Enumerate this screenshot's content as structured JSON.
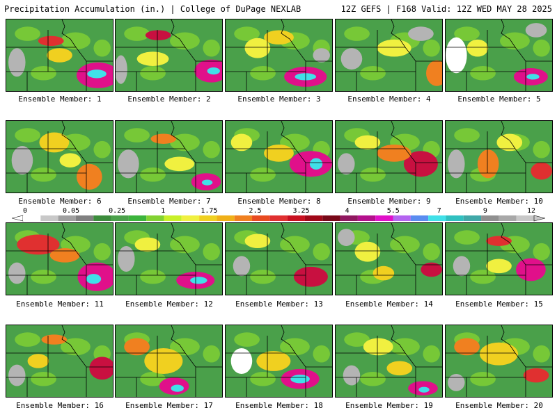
{
  "header": {
    "title": "Precipitation Accumulation (in.) | College of DuPage NEXLAB",
    "run_info": "12Z GEFS | F168 Valid: 12Z WED MAY 28 2025"
  },
  "members": [
    {
      "caption": "Ensemble Member: 1",
      "blobs": [
        [
          0.42,
          0.3,
          0.12,
          0.07,
          "#e03030"
        ],
        [
          0.86,
          0.78,
          0.2,
          0.18,
          "#e0108a"
        ],
        [
          0.85,
          0.76,
          0.09,
          0.06,
          "#40e0e8"
        ],
        [
          0.5,
          0.5,
          0.12,
          0.1,
          "#f0d020"
        ],
        [
          0.1,
          0.6,
          0.08,
          0.2,
          "#b4b4b4"
        ]
      ]
    },
    {
      "caption": "Ensemble Member: 2",
      "blobs": [
        [
          0.4,
          0.22,
          0.12,
          0.07,
          "#c81040"
        ],
        [
          0.9,
          0.72,
          0.16,
          0.16,
          "#e0108a"
        ],
        [
          0.92,
          0.72,
          0.06,
          0.05,
          "#40e0e8"
        ],
        [
          0.35,
          0.55,
          0.15,
          0.1,
          "#f0f040"
        ],
        [
          0.05,
          0.7,
          0.06,
          0.2,
          "#b4b4b4"
        ]
      ]
    },
    {
      "caption": "Ensemble Member: 3",
      "blobs": [
        [
          0.75,
          0.8,
          0.2,
          0.14,
          "#e0108a"
        ],
        [
          0.75,
          0.8,
          0.1,
          0.05,
          "#40e0e8"
        ],
        [
          0.5,
          0.25,
          0.14,
          0.1,
          "#f0d020"
        ],
        [
          0.3,
          0.4,
          0.12,
          0.14,
          "#f0f040"
        ],
        [
          0.9,
          0.5,
          0.08,
          0.1,
          "#b4b4b4"
        ]
      ]
    },
    {
      "caption": "Ensemble Member: 4",
      "blobs": [
        [
          0.95,
          0.75,
          0.1,
          0.18,
          "#f08020"
        ],
        [
          0.55,
          0.4,
          0.16,
          0.12,
          "#f0f040"
        ],
        [
          0.15,
          0.55,
          0.1,
          0.15,
          "#b4b4b4"
        ],
        [
          0.8,
          0.2,
          0.12,
          0.1,
          "#b4b4b4"
        ]
      ]
    },
    {
      "caption": "Ensemble Member: 5",
      "blobs": [
        [
          0.8,
          0.8,
          0.16,
          0.12,
          "#e0108a"
        ],
        [
          0.82,
          0.8,
          0.06,
          0.04,
          "#40e0e8"
        ],
        [
          0.1,
          0.5,
          0.1,
          0.25,
          "#ffffff"
        ],
        [
          0.3,
          0.4,
          0.1,
          0.12,
          "#f0f040"
        ],
        [
          0.85,
          0.15,
          0.1,
          0.1,
          "#b4b4b4"
        ]
      ]
    },
    {
      "caption": "Ensemble Member: 6",
      "blobs": [
        [
          0.78,
          0.78,
          0.12,
          0.18,
          "#f08020"
        ],
        [
          0.45,
          0.3,
          0.14,
          0.14,
          "#f0d020"
        ],
        [
          0.15,
          0.55,
          0.1,
          0.2,
          "#b4b4b4"
        ],
        [
          0.6,
          0.55,
          0.1,
          0.1,
          "#f0f040"
        ]
      ]
    },
    {
      "caption": "Ensemble Member: 7",
      "blobs": [
        [
          0.85,
          0.85,
          0.14,
          0.12,
          "#e0108a"
        ],
        [
          0.86,
          0.86,
          0.05,
          0.04,
          "#40e0e8"
        ],
        [
          0.45,
          0.25,
          0.12,
          0.07,
          "#f08020"
        ],
        [
          0.12,
          0.6,
          0.1,
          0.2,
          "#b4b4b4"
        ],
        [
          0.6,
          0.6,
          0.14,
          0.1,
          "#f0f040"
        ]
      ]
    },
    {
      "caption": "Ensemble Member: 8",
      "blobs": [
        [
          0.8,
          0.6,
          0.2,
          0.18,
          "#e0108a"
        ],
        [
          0.85,
          0.6,
          0.06,
          0.08,
          "#40e0e8"
        ],
        [
          0.5,
          0.45,
          0.14,
          0.12,
          "#f0d020"
        ],
        [
          0.15,
          0.3,
          0.1,
          0.12,
          "#f0f040"
        ]
      ]
    },
    {
      "caption": "Ensemble Member: 9",
      "blobs": [
        [
          0.8,
          0.6,
          0.16,
          0.18,
          "#c81040"
        ],
        [
          0.55,
          0.45,
          0.16,
          0.12,
          "#f08020"
        ],
        [
          0.3,
          0.3,
          0.12,
          0.1,
          "#f0f040"
        ],
        [
          0.1,
          0.6,
          0.08,
          0.15,
          "#b4b4b4"
        ]
      ]
    },
    {
      "caption": "Ensemble Member: 10",
      "blobs": [
        [
          0.9,
          0.7,
          0.1,
          0.12,
          "#e03030"
        ],
        [
          0.4,
          0.6,
          0.1,
          0.2,
          "#f08020"
        ],
        [
          0.1,
          0.6,
          0.08,
          0.2,
          "#b4b4b4"
        ],
        [
          0.6,
          0.3,
          0.12,
          0.12,
          "#f0f040"
        ]
      ]
    },
    {
      "caption": "Ensemble Member: 11",
      "blobs": [
        [
          0.85,
          0.75,
          0.18,
          0.2,
          "#e0108a"
        ],
        [
          0.82,
          0.78,
          0.07,
          0.07,
          "#40e0e8"
        ],
        [
          0.3,
          0.3,
          0.2,
          0.14,
          "#e03030"
        ],
        [
          0.1,
          0.7,
          0.08,
          0.15,
          "#b4b4b4"
        ],
        [
          0.55,
          0.45,
          0.14,
          0.1,
          "#f08020"
        ]
      ]
    },
    {
      "caption": "Ensemble Member: 12",
      "blobs": [
        [
          0.75,
          0.8,
          0.18,
          0.12,
          "#e0108a"
        ],
        [
          0.78,
          0.8,
          0.08,
          0.05,
          "#40e0e8"
        ],
        [
          0.3,
          0.3,
          0.12,
          0.1,
          "#f0f040"
        ],
        [
          0.1,
          0.5,
          0.08,
          0.18,
          "#b4b4b4"
        ]
      ]
    },
    {
      "caption": "Ensemble Member: 13",
      "blobs": [
        [
          0.8,
          0.75,
          0.16,
          0.14,
          "#c81040"
        ],
        [
          0.3,
          0.25,
          0.12,
          0.1,
          "#f0f040"
        ],
        [
          0.15,
          0.6,
          0.08,
          0.14,
          "#b4b4b4"
        ]
      ]
    },
    {
      "caption": "Ensemble Member: 14",
      "blobs": [
        [
          0.9,
          0.65,
          0.1,
          0.1,
          "#c81040"
        ],
        [
          0.3,
          0.4,
          0.12,
          0.14,
          "#f0f040"
        ],
        [
          0.1,
          0.2,
          0.08,
          0.12,
          "#b4b4b4"
        ],
        [
          0.45,
          0.7,
          0.1,
          0.1,
          "#f0d020"
        ]
      ]
    },
    {
      "caption": "Ensemble Member: 15",
      "blobs": [
        [
          0.8,
          0.65,
          0.14,
          0.16,
          "#e0108a"
        ],
        [
          0.5,
          0.25,
          0.12,
          0.07,
          "#e03030"
        ],
        [
          0.15,
          0.6,
          0.08,
          0.14,
          "#b4b4b4"
        ],
        [
          0.5,
          0.6,
          0.12,
          0.1,
          "#f0f040"
        ]
      ]
    },
    {
      "caption": "Ensemble Member: 16",
      "blobs": [
        [
          0.9,
          0.6,
          0.12,
          0.16,
          "#c81040"
        ],
        [
          0.45,
          0.2,
          0.12,
          0.07,
          "#f08020"
        ],
        [
          0.3,
          0.5,
          0.1,
          0.1,
          "#f0d020"
        ],
        [
          0.1,
          0.7,
          0.08,
          0.15,
          "#b4b4b4"
        ]
      ]
    },
    {
      "caption": "Ensemble Member: 17",
      "blobs": [
        [
          0.55,
          0.85,
          0.14,
          0.12,
          "#e0108a"
        ],
        [
          0.58,
          0.88,
          0.06,
          0.05,
          "#40e0e8"
        ],
        [
          0.45,
          0.5,
          0.18,
          0.18,
          "#f0d020"
        ],
        [
          0.2,
          0.3,
          0.12,
          0.12,
          "#f08020"
        ]
      ]
    },
    {
      "caption": "Ensemble Member: 18",
      "blobs": [
        [
          0.7,
          0.75,
          0.18,
          0.14,
          "#e0108a"
        ],
        [
          0.7,
          0.75,
          0.09,
          0.06,
          "#40e0e8"
        ],
        [
          0.45,
          0.5,
          0.16,
          0.14,
          "#f0d020"
        ],
        [
          0.15,
          0.5,
          0.1,
          0.18,
          "#ffffff"
        ]
      ]
    },
    {
      "caption": "Ensemble Member: 19",
      "blobs": [
        [
          0.82,
          0.88,
          0.14,
          0.1,
          "#e0108a"
        ],
        [
          0.83,
          0.9,
          0.05,
          0.04,
          "#40e0e8"
        ],
        [
          0.4,
          0.3,
          0.14,
          0.12,
          "#f0f040"
        ],
        [
          0.15,
          0.7,
          0.08,
          0.14,
          "#b4b4b4"
        ],
        [
          0.6,
          0.6,
          0.12,
          0.1,
          "#f0d020"
        ]
      ]
    },
    {
      "caption": "Ensemble Member: 20",
      "blobs": [
        [
          0.85,
          0.7,
          0.12,
          0.1,
          "#e03030"
        ],
        [
          0.5,
          0.4,
          0.18,
          0.16,
          "#f0d020"
        ],
        [
          0.2,
          0.3,
          0.12,
          0.12,
          "#f08020"
        ],
        [
          0.1,
          0.8,
          0.08,
          0.12,
          "#b4b4b4"
        ]
      ]
    }
  ],
  "colorbar": {
    "colors": [
      "#ffffff",
      "#c8c8c8",
      "#a0a0a0",
      "#808080",
      "#3c8c3c",
      "#4aa04a",
      "#3cb43c",
      "#82d232",
      "#c8f028",
      "#f0f040",
      "#f0d020",
      "#f0b018",
      "#f08020",
      "#e84a20",
      "#e03030",
      "#c81020",
      "#a00818",
      "#780818",
      "#901860",
      "#b4108c",
      "#e010c8",
      "#b464f0",
      "#5a8cf0",
      "#40e0e8",
      "#30c0c0",
      "#40a8a8",
      "#909090",
      "#a8a8a8",
      "#c8c8c8"
    ],
    "labels": [
      "0",
      "0.05",
      "0.25",
      "1",
      "1.75",
      "2.5",
      "3.25",
      "4",
      "5.5",
      "7",
      "9",
      "12"
    ]
  }
}
